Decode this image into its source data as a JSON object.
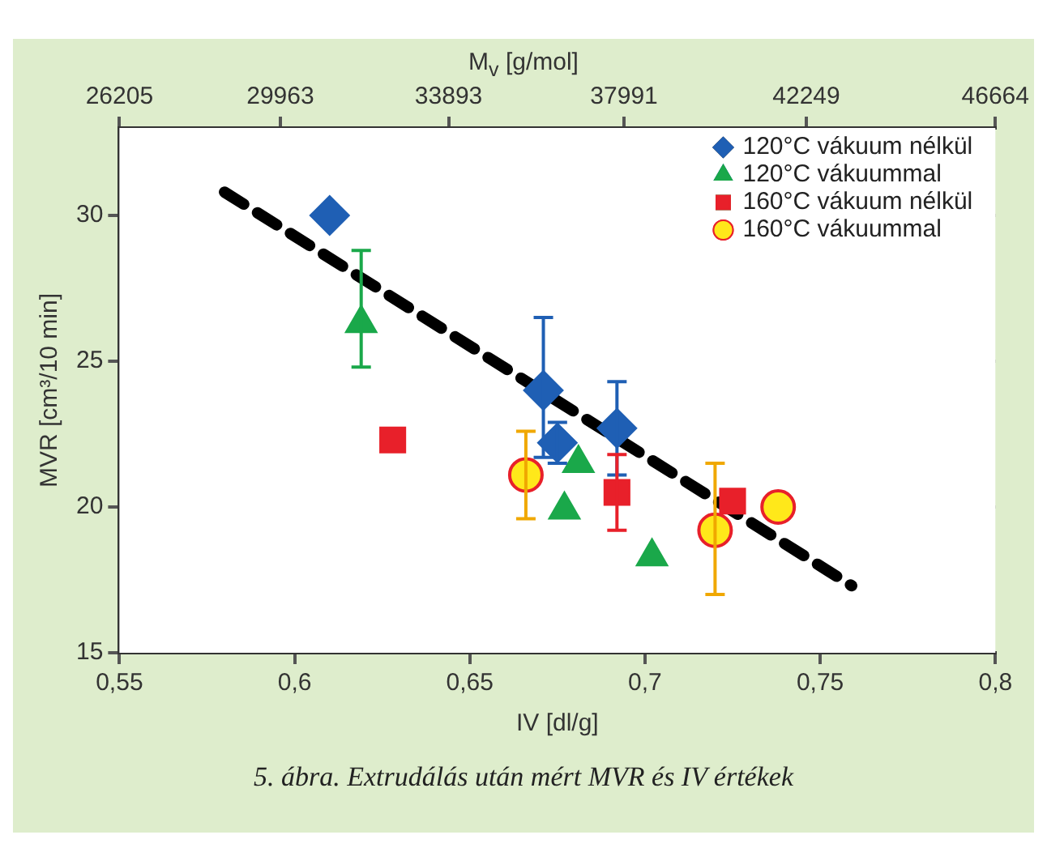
{
  "chart_data": {
    "type": "scatter",
    "xlabel": "IV [dl/g]",
    "ylabel": "MVR [cm³/10 min]",
    "x2label": "M$_{v}$ [g/mol]",
    "xlim": [
      0.55,
      0.8
    ],
    "xticks": [
      {
        "value": 0.55,
        "label": "0,55"
      },
      {
        "value": 0.6,
        "label": "0,6"
      },
      {
        "value": 0.65,
        "label": "0,65"
      },
      {
        "value": 0.7,
        "label": "0,7"
      },
      {
        "value": 0.75,
        "label": "0,75"
      },
      {
        "value": 0.8,
        "label": "0,8"
      }
    ],
    "ylim": [
      15,
      33
    ],
    "yticks": [
      15,
      20,
      25,
      30
    ],
    "x2lim": [
      26205,
      46664
    ],
    "x2ticks": [
      26205,
      29963,
      33893,
      37991,
      42249,
      46664
    ],
    "grid": "y",
    "legend": "top right",
    "series": [
      {
        "name": "120°C vákuum nélkül",
        "color": "#1f5fb4",
        "marker": "diamond",
        "x": [
          0.61,
          0.671,
          0.675,
          0.692
        ],
        "values": [
          30,
          24.0,
          22.2,
          22.7
        ],
        "errors": [
          null,
          [
            21.7,
            26.5
          ],
          [
            21.5,
            22.9
          ],
          [
            21.1,
            24.3
          ]
        ]
      },
      {
        "name": "120°C vákuummal",
        "color": "#1aa84a",
        "marker": "triangle",
        "x": [
          0.619,
          0.677,
          0.681,
          0.702
        ],
        "values": [
          26.3,
          19.9,
          21.5,
          18.3
        ],
        "errors": [
          [
            24.8,
            28.8
          ],
          null,
          null,
          null
        ]
      },
      {
        "name": "160°C vákuum nélkül",
        "color": "#e8202a",
        "marker": "square",
        "x": [
          0.628,
          0.692,
          0.725
        ],
        "values": [
          22.3,
          20.5,
          20.2
        ],
        "errors": [
          null,
          [
            19.2,
            21.8
          ],
          null
        ]
      },
      {
        "name": "160°C vákuummal",
        "color": "#ffe81a",
        "marker": "circle",
        "x": [
          0.666,
          0.72,
          0.738
        ],
        "values": [
          21.1,
          19.2,
          20.0
        ],
        "errors": [
          [
            19.6,
            22.6
          ],
          [
            17.0,
            21.5
          ],
          null
        ]
      },
      {
        "type": "line",
        "color": "#000000",
        "line_style": "dashed",
        "marker": "none",
        "x": [
          0.58,
          0.759
        ],
        "values": [
          30.8,
          17.3
        ]
      }
    ],
    "annotations": [
      "5. ábra. Extrudálás után mért MVR és IV értékek"
    ]
  }
}
